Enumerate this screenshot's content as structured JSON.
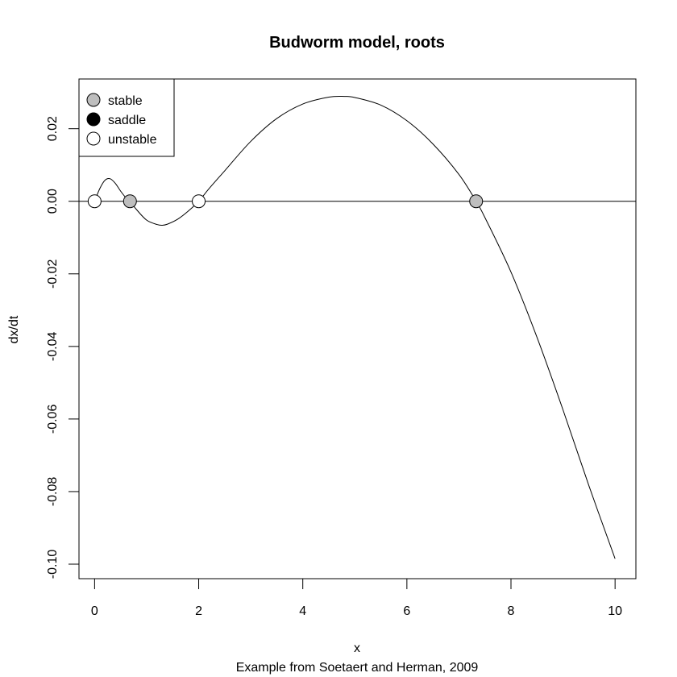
{
  "chart_data": {
    "type": "line",
    "title": "Budworm model, roots",
    "xlabel": "x",
    "ylabel": "dx/dt",
    "subtitle": "Example from Soetaert and Herman, 2009",
    "xlim": [
      -0.3,
      10.4
    ],
    "ylim": [
      -0.104,
      0.0337
    ],
    "x_ticks": [
      0,
      2,
      4,
      6,
      8,
      10
    ],
    "x_tick_labels": [
      "0",
      "2",
      "4",
      "6",
      "8",
      "10"
    ],
    "y_ticks": [
      -0.1,
      -0.08,
      -0.06,
      -0.04,
      -0.02,
      0.0,
      0.02
    ],
    "y_tick_labels": [
      "-0.10",
      "-0.08",
      "-0.06",
      "-0.04",
      "-0.02",
      "0.00",
      "0.02"
    ],
    "grid": false,
    "legend_position": "top-left",
    "legend": [
      {
        "label": "stable",
        "fill": "#bebebe"
      },
      {
        "label": "saddle",
        "fill": "#000000"
      },
      {
        "label": "unstable",
        "fill": "#ffffff"
      }
    ],
    "hline": 0,
    "series": [
      {
        "x": [
          0,
          0.1,
          0.2,
          0.3,
          0.4,
          0.5,
          0.6,
          0.68,
          0.8,
          1.0,
          1.2,
          1.3,
          1.4,
          1.6,
          1.8,
          2.0,
          2.2,
          2.5,
          3.0,
          3.5,
          4.0,
          4.5,
          4.8,
          5.0,
          5.5,
          6.0,
          6.5,
          7.0,
          7.33,
          7.5,
          8.0,
          8.5,
          9.0,
          9.5,
          10.0
        ],
        "y": [
          0.0,
          0.0035,
          0.0058,
          0.0062,
          0.0049,
          0.0028,
          0.001,
          0.0,
          -0.0022,
          -0.0052,
          -0.0064,
          -0.0066,
          -0.0063,
          -0.0049,
          -0.0027,
          0.0,
          0.0035,
          0.0084,
          0.0165,
          0.0228,
          0.0268,
          0.0287,
          0.0289,
          0.0286,
          0.0265,
          0.0222,
          0.0158,
          0.0074,
          0.0,
          -0.0045,
          -0.0195,
          -0.0375,
          -0.0575,
          -0.0785,
          -0.0985
        ],
        "color": "#000000"
      }
    ],
    "points": [
      {
        "x": 0.0,
        "y": 0.0,
        "type": "unstable"
      },
      {
        "x": 0.68,
        "y": 0.0,
        "type": "stable"
      },
      {
        "x": 2.0,
        "y": 0.0,
        "type": "unstable"
      },
      {
        "x": 7.33,
        "y": 0.0,
        "type": "stable"
      }
    ]
  }
}
